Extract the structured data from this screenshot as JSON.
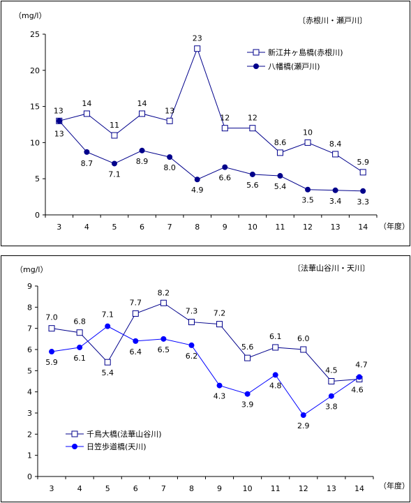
{
  "chart_data": [
    {
      "type": "line",
      "unit": "（mg/l）",
      "region": "〔赤根川・瀬戸川〕",
      "xlabel": "（年度）",
      "ylim": [
        0,
        25
      ],
      "yticks": [
        0,
        5,
        10,
        15,
        20,
        25
      ],
      "categories": [
        "3",
        "4",
        "5",
        "6",
        "7",
        "8",
        "9",
        "10",
        "11",
        "12",
        "13",
        "14"
      ],
      "legend_position": "top-right",
      "grid": false,
      "series": [
        {
          "name": "新江井ヶ島橋(赤根川)",
          "marker": "square-open",
          "color": "#00008B",
          "values": [
            13,
            14,
            11,
            14,
            13,
            23,
            12,
            12,
            8.6,
            10,
            8.4,
            5.9
          ],
          "labels": [
            "13",
            "14",
            "11",
            "14",
            "13",
            "23",
            "12",
            "12",
            "8.6",
            "10",
            "8.4",
            "5.9"
          ]
        },
        {
          "name": "八幡橋(瀬戸川)",
          "marker": "circle-filled",
          "color": "#00008B",
          "values": [
            13,
            8.7,
            7.1,
            8.9,
            8.0,
            4.9,
            6.6,
            5.6,
            5.4,
            3.5,
            3.4,
            3.3
          ],
          "labels": [
            "13",
            "8.7",
            "7.1",
            "8.9",
            "8.0",
            "4.9",
            "6.6",
            "5.6",
            "5.4",
            "3.5",
            "3.4",
            "3.3"
          ]
        }
      ]
    },
    {
      "type": "line",
      "unit": "（mg/l）",
      "region": "〔法華山谷川・天川〕",
      "xlabel": "（年度）",
      "ylim": [
        0,
        9
      ],
      "yticks": [
        0,
        1,
        2,
        3,
        4,
        5,
        6,
        7,
        8,
        9
      ],
      "categories": [
        "3",
        "4",
        "5",
        "6",
        "7",
        "8",
        "9",
        "10",
        "11",
        "12",
        "13",
        "14"
      ],
      "legend_position": "bottom-left",
      "grid": false,
      "series": [
        {
          "name": "千鳥大橋(法華山谷川)",
          "marker": "square-open",
          "color": "#00008B",
          "values": [
            7.0,
            6.8,
            5.4,
            7.7,
            8.2,
            7.3,
            7.2,
            5.6,
            6.1,
            6.0,
            4.5,
            4.6
          ],
          "labels": [
            "7.0",
            "6.8",
            "5.4",
            "7.7",
            "8.2",
            "7.3",
            "7.2",
            "5.6",
            "6.1",
            "6.0",
            "4.5",
            "4.6"
          ]
        },
        {
          "name": "日笠歩道橋(天川)",
          "marker": "circle-filled",
          "color": "#0000FF",
          "values": [
            5.9,
            6.1,
            7.1,
            6.4,
            6.5,
            6.2,
            4.3,
            3.9,
            4.8,
            2.9,
            3.8,
            4.7
          ],
          "labels": [
            "5.9",
            "6.1",
            "7.1",
            "6.4",
            "6.5",
            "6.2",
            "4.3",
            "3.9",
            "4.8",
            "2.9",
            "3.8",
            "4.7"
          ]
        }
      ]
    }
  ]
}
